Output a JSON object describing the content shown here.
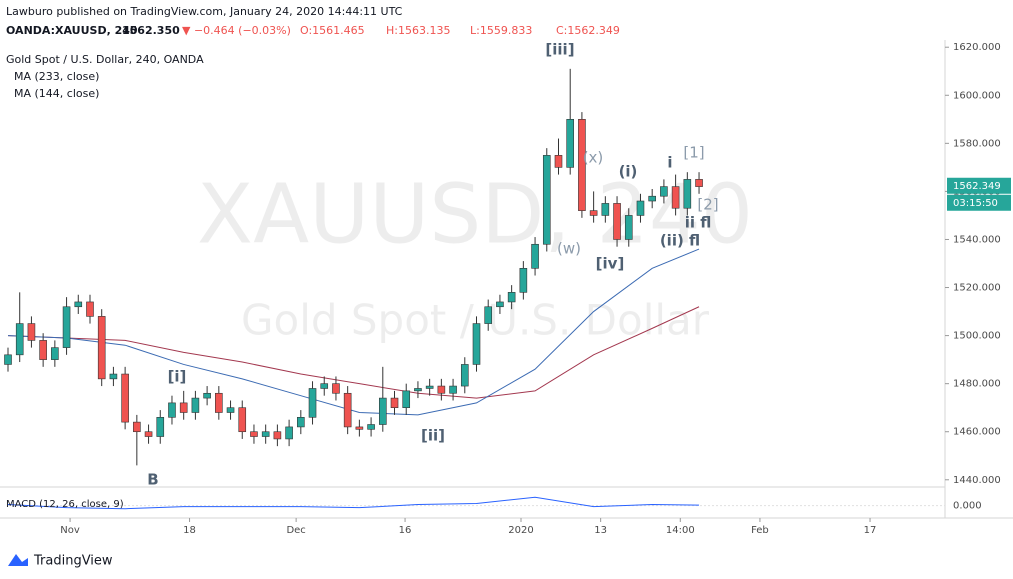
{
  "chart_data": {
    "type": "candlestick",
    "publisher": "Lawburo published on TradingView.com, January 24, 2020 14:44:11 UTC",
    "symbol": "OANDA:XAUUSD, 240",
    "last": "1562.350",
    "change": "▼ −0.464 (−0.03%)",
    "ohlc_labels": [
      "O:1561.465",
      "H:1563.135",
      "L:1559.833",
      "C:1562.349"
    ],
    "title": "Gold Spot / U.S. Dollar, 240, OANDA",
    "watermark": [
      "XAUUSD, 240",
      "Gold Spot / U.S. Dollar"
    ],
    "price_label": "1562.349",
    "countdown": "03:15:50",
    "annotations": [
      "[iii]",
      "(x)",
      "(i)",
      "i",
      "[1]",
      "[2]",
      "ii fl",
      "(ii) fl",
      "(w)",
      "[iv]",
      "[i]",
      "[ii]",
      "B"
    ],
    "up_color": "#26a69a",
    "down_color": "#ef5350",
    "open": [
      1488,
      1492,
      1505,
      1498,
      1490,
      1495,
      1512,
      1514,
      1508,
      1482,
      1484,
      1464,
      1460,
      1458,
      1466,
      1472,
      1468,
      1474,
      1476,
      1468,
      1470,
      1460,
      1458,
      1460,
      1457,
      1462,
      1466,
      1478,
      1480,
      1476,
      1462,
      1461,
      1463,
      1474,
      1470,
      1477,
      1478,
      1479,
      1476,
      1479,
      1488,
      1505,
      1512,
      1514,
      1518,
      1528,
      1538,
      1575,
      1570,
      1590,
      1552,
      1550,
      1555,
      1540,
      1550,
      1556,
      1558,
      1562,
      1553,
      1565
    ],
    "high": [
      1495,
      1518,
      1508,
      1501,
      1498,
      1516,
      1517,
      1517,
      1511,
      1487,
      1487,
      1467,
      1463,
      1469,
      1475,
      1477,
      1477,
      1479,
      1479,
      1473,
      1473,
      1463,
      1463,
      1463,
      1465,
      1469,
      1481,
      1483,
      1483,
      1479,
      1465,
      1466,
      1487,
      1477,
      1480,
      1481,
      1482,
      1482,
      1482,
      1491,
      1508,
      1515,
      1517,
      1521,
      1531,
      1541,
      1578,
      1582,
      1611,
      1593,
      1560,
      1558,
      1558,
      1553,
      1559,
      1561,
      1565,
      1567,
      1568,
      1568
    ],
    "low": [
      1485,
      1489,
      1495,
      1487,
      1487,
      1492,
      1509,
      1505,
      1479,
      1479,
      1461,
      1446,
      1455,
      1455,
      1463,
      1465,
      1465,
      1471,
      1465,
      1465,
      1457,
      1455,
      1455,
      1454,
      1454,
      1459,
      1463,
      1475,
      1473,
      1459,
      1458,
      1458,
      1460,
      1467,
      1467,
      1474,
      1475,
      1473,
      1473,
      1476,
      1485,
      1502,
      1509,
      1511,
      1515,
      1525,
      1535,
      1567,
      1567,
      1549,
      1547,
      1547,
      1537,
      1537,
      1547,
      1553,
      1555,
      1550,
      1550,
      1559
    ],
    "close": [
      1492,
      1505,
      1498,
      1490,
      1495,
      1512,
      1514,
      1508,
      1482,
      1484,
      1464,
      1460,
      1458,
      1466,
      1472,
      1468,
      1474,
      1476,
      1468,
      1470,
      1460,
      1458,
      1460,
      1457,
      1462,
      1466,
      1478,
      1480,
      1476,
      1462,
      1461,
      1463,
      1474,
      1470,
      1477,
      1478,
      1479,
      1476,
      1479,
      1488,
      1505,
      1512,
      1514,
      1518,
      1528,
      1538,
      1575,
      1570,
      1590,
      1552,
      1550,
      1555,
      1540,
      1550,
      1556,
      1558,
      1562,
      1553,
      1565,
      1562
    ],
    "series": [
      {
        "name": "MA (233, close)",
        "color": "#a3384f",
        "x": [
          0,
          5,
          10,
          15,
          20,
          25,
          30,
          35,
          40,
          45,
          50,
          55,
          59
        ],
        "values": [
          1500,
          1499,
          1498,
          1493,
          1489,
          1484,
          1480,
          1476,
          1474,
          1477,
          1492,
          1503,
          1512
        ]
      },
      {
        "name": "MA (144, close)",
        "color": "#3c6bb3",
        "x": [
          0,
          5,
          10,
          15,
          20,
          25,
          30,
          35,
          40,
          45,
          50,
          55,
          59
        ],
        "values": [
          1500,
          1499,
          1496,
          1488,
          1482,
          1475,
          1468,
          1467,
          1472,
          1486,
          1510,
          1528,
          1536
        ]
      }
    ],
    "macd": {
      "name": "MACD (12, 26, close, 9)",
      "color": "#2962ff",
      "x": [
        0,
        5,
        10,
        15,
        20,
        25,
        30,
        35,
        40,
        45,
        50,
        55,
        59
      ],
      "values": [
        1,
        -2,
        -3,
        -1,
        -1,
        -1,
        -2,
        1,
        2,
        8,
        -1,
        1,
        0.5
      ],
      "ylim": [
        -10,
        15
      ],
      "yticks": [
        {
          "value": 0,
          "label": "0.000"
        }
      ]
    },
    "xlim": [
      0,
      80
    ],
    "ylim": [
      1437,
      1623
    ],
    "yticks": [
      {
        "value": 1440,
        "label": "1440.000"
      },
      {
        "value": 1460,
        "label": "1460.000"
      },
      {
        "value": 1480,
        "label": "1480.000"
      },
      {
        "value": 1500,
        "label": "1500.000"
      },
      {
        "value": 1520,
        "label": "1520.000"
      },
      {
        "value": 1540,
        "label": "1540.000"
      },
      {
        "value": 1560,
        "label": "1560.000"
      },
      {
        "value": 1580,
        "label": "1580.000"
      },
      {
        "value": 1600,
        "label": "1600.000"
      },
      {
        "value": 1620,
        "label": "1620.000"
      }
    ],
    "xticks": [
      {
        "value": 5.3,
        "label": "Nov"
      },
      {
        "value": 15.5,
        "label": "18"
      },
      {
        "value": 24.6,
        "label": "Dec"
      },
      {
        "value": 33.9,
        "label": "16"
      },
      {
        "value": 43.8,
        "label": "2020"
      },
      {
        "value": 50.6,
        "label": "13"
      },
      {
        "value": 57.4,
        "label": "14:00"
      },
      {
        "value": 64.2,
        "label": "Feb"
      },
      {
        "value": 73.6,
        "label": "17"
      }
    ],
    "footer": "TradingView"
  }
}
